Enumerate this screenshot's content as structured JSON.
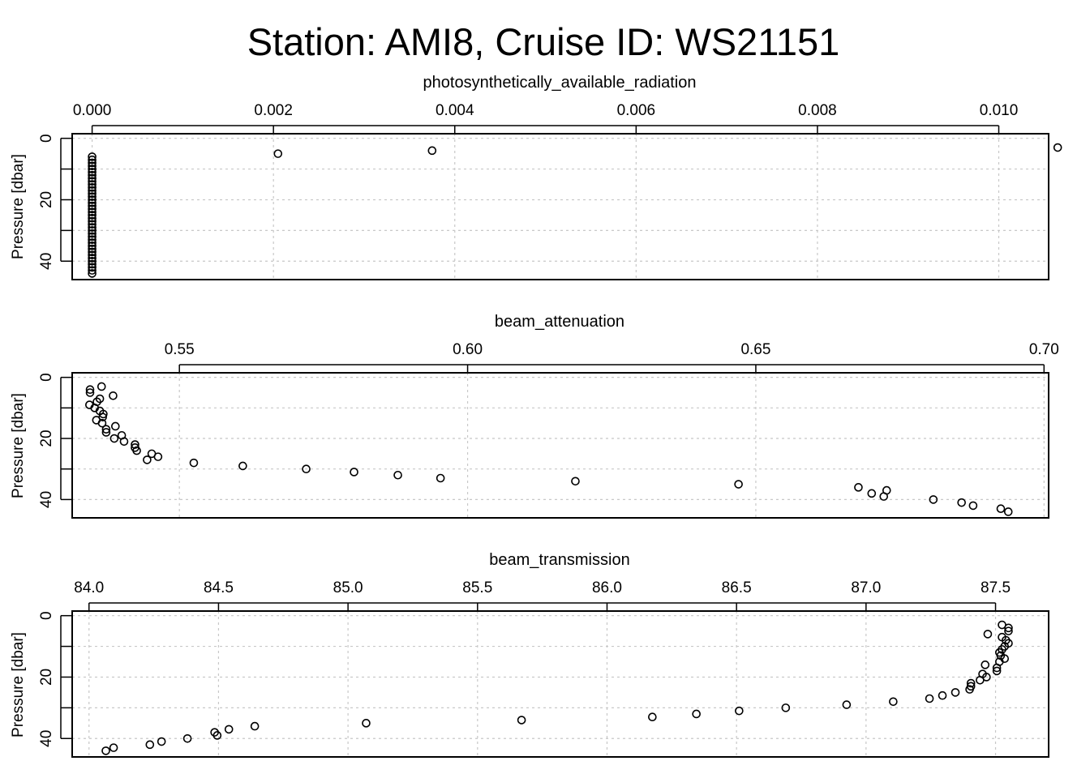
{
  "title": "Station: AMI8, Cruise ID: WS21151",
  "chart_data": [
    {
      "type": "scatter",
      "xlabel": "photosynthetically_available_radiation",
      "ylabel": "Pressure [dbar]",
      "xlim": [
        -0.00022,
        0.01055
      ],
      "ylim": [
        46,
        -1.5
      ],
      "y_reversed": true,
      "xticks": [
        0.0,
        0.002,
        0.004,
        0.006,
        0.008,
        0.01
      ],
      "xtick_labels": [
        "0.000",
        "0.002",
        "0.004",
        "0.006",
        "0.008",
        "0.010"
      ],
      "yticks": [
        0,
        20,
        40
      ],
      "ytick_labels": [
        "0",
        "20",
        "40"
      ],
      "grid": true,
      "points": [
        [
          0.0,
          6
        ],
        [
          0.0,
          7
        ],
        [
          0.0,
          8
        ],
        [
          0.0,
          9
        ],
        [
          0.0,
          10
        ],
        [
          0.0,
          11
        ],
        [
          0.0,
          12
        ],
        [
          0.0,
          13
        ],
        [
          0.0,
          14
        ],
        [
          0.0,
          15
        ],
        [
          0.0,
          16
        ],
        [
          0.0,
          17
        ],
        [
          0.0,
          18
        ],
        [
          0.0,
          19
        ],
        [
          0.0,
          20
        ],
        [
          0.0,
          21
        ],
        [
          0.0,
          22
        ],
        [
          0.0,
          23
        ],
        [
          0.0,
          24
        ],
        [
          0.0,
          25
        ],
        [
          0.0,
          26
        ],
        [
          0.0,
          27
        ],
        [
          0.0,
          28
        ],
        [
          0.0,
          29
        ],
        [
          0.0,
          30
        ],
        [
          0.0,
          31
        ],
        [
          0.0,
          32
        ],
        [
          0.0,
          33
        ],
        [
          0.0,
          34
        ],
        [
          0.0,
          35
        ],
        [
          0.0,
          36
        ],
        [
          0.0,
          37
        ],
        [
          0.0,
          38
        ],
        [
          0.0,
          39
        ],
        [
          0.0,
          40
        ],
        [
          0.0,
          41
        ],
        [
          0.0,
          42
        ],
        [
          0.0,
          43
        ],
        [
          0.0,
          44
        ],
        [
          0.00205,
          5
        ],
        [
          0.00375,
          4
        ],
        [
          0.01065,
          3
        ]
      ]
    },
    {
      "type": "scatter",
      "xlabel": "beam_attenuation",
      "ylabel": "Pressure [dbar]",
      "xlim": [
        0.5314,
        0.7008
      ],
      "ylim": [
        46,
        -1.5
      ],
      "y_reversed": true,
      "xticks": [
        0.55,
        0.6,
        0.65,
        0.7
      ],
      "xtick_labels": [
        "0.55",
        "0.60",
        "0.65",
        "0.70"
      ],
      "yticks": [
        0,
        20,
        40
      ],
      "ytick_labels": [
        "0",
        "20",
        "40"
      ],
      "grid": true,
      "points": [
        [
          0.5365,
          3
        ],
        [
          0.5345,
          4
        ],
        [
          0.5345,
          5
        ],
        [
          0.5385,
          6
        ],
        [
          0.5362,
          7
        ],
        [
          0.5357,
          8
        ],
        [
          0.5344,
          9
        ],
        [
          0.5353,
          10
        ],
        [
          0.5362,
          11
        ],
        [
          0.5368,
          12
        ],
        [
          0.5367,
          13
        ],
        [
          0.5356,
          14
        ],
        [
          0.5366,
          15
        ],
        [
          0.5389,
          16
        ],
        [
          0.5373,
          17
        ],
        [
          0.5373,
          18
        ],
        [
          0.54,
          19
        ],
        [
          0.5387,
          20
        ],
        [
          0.5404,
          21
        ],
        [
          0.5423,
          22
        ],
        [
          0.5423,
          23
        ],
        [
          0.5426,
          24
        ],
        [
          0.5452,
          25
        ],
        [
          0.5463,
          26
        ],
        [
          0.5444,
          27
        ],
        [
          0.5525,
          28
        ],
        [
          0.561,
          29
        ],
        [
          0.572,
          30
        ],
        [
          0.5803,
          31
        ],
        [
          0.5879,
          32
        ],
        [
          0.5953,
          33
        ],
        [
          0.6187,
          34
        ],
        [
          0.647,
          35
        ],
        [
          0.6678,
          36
        ],
        [
          0.6727,
          37
        ],
        [
          0.6701,
          38
        ],
        [
          0.6722,
          39
        ],
        [
          0.6808,
          40
        ],
        [
          0.6857,
          41
        ],
        [
          0.6877,
          42
        ],
        [
          0.6925,
          43
        ],
        [
          0.6938,
          44
        ]
      ]
    },
    {
      "type": "scatter",
      "xlabel": "beam_transmission",
      "ylabel": "Pressure [dbar]",
      "xlim": [
        83.935,
        87.705
      ],
      "ylim": [
        46,
        -1.5
      ],
      "y_reversed": true,
      "xticks": [
        84.0,
        84.5,
        85.0,
        85.5,
        86.0,
        86.5,
        87.0,
        87.5
      ],
      "xtick_labels": [
        "84.0",
        "84.5",
        "85.0",
        "85.5",
        "86.0",
        "86.5",
        "87.0",
        "87.5"
      ],
      "yticks": [
        0,
        20,
        40
      ],
      "ytick_labels": [
        "0",
        "20",
        "40"
      ],
      "grid": true,
      "points": [
        [
          87.525,
          3
        ],
        [
          87.55,
          4
        ],
        [
          87.55,
          5
        ],
        [
          87.47,
          6
        ],
        [
          87.525,
          7
        ],
        [
          87.54,
          8
        ],
        [
          87.55,
          9
        ],
        [
          87.535,
          10
        ],
        [
          87.525,
          11
        ],
        [
          87.515,
          12
        ],
        [
          87.52,
          13
        ],
        [
          87.535,
          14
        ],
        [
          87.515,
          15
        ],
        [
          87.46,
          16
        ],
        [
          87.505,
          17
        ],
        [
          87.505,
          18
        ],
        [
          87.45,
          19
        ],
        [
          87.465,
          20
        ],
        [
          87.44,
          21
        ],
        [
          87.405,
          22
        ],
        [
          87.405,
          23
        ],
        [
          87.4,
          24
        ],
        [
          87.345,
          25
        ],
        [
          87.295,
          26
        ],
        [
          87.245,
          27
        ],
        [
          87.105,
          28
        ],
        [
          86.925,
          29
        ],
        [
          86.69,
          30
        ],
        [
          86.51,
          31
        ],
        [
          86.345,
          32
        ],
        [
          86.175,
          33
        ],
        [
          85.67,
          34
        ],
        [
          85.07,
          35
        ],
        [
          84.64,
          36
        ],
        [
          84.54,
          37
        ],
        [
          84.485,
          38
        ],
        [
          84.495,
          39
        ],
        [
          84.38,
          40
        ],
        [
          84.28,
          41
        ],
        [
          84.235,
          42
        ],
        [
          84.095,
          43
        ],
        [
          84.065,
          44
        ]
      ]
    }
  ]
}
